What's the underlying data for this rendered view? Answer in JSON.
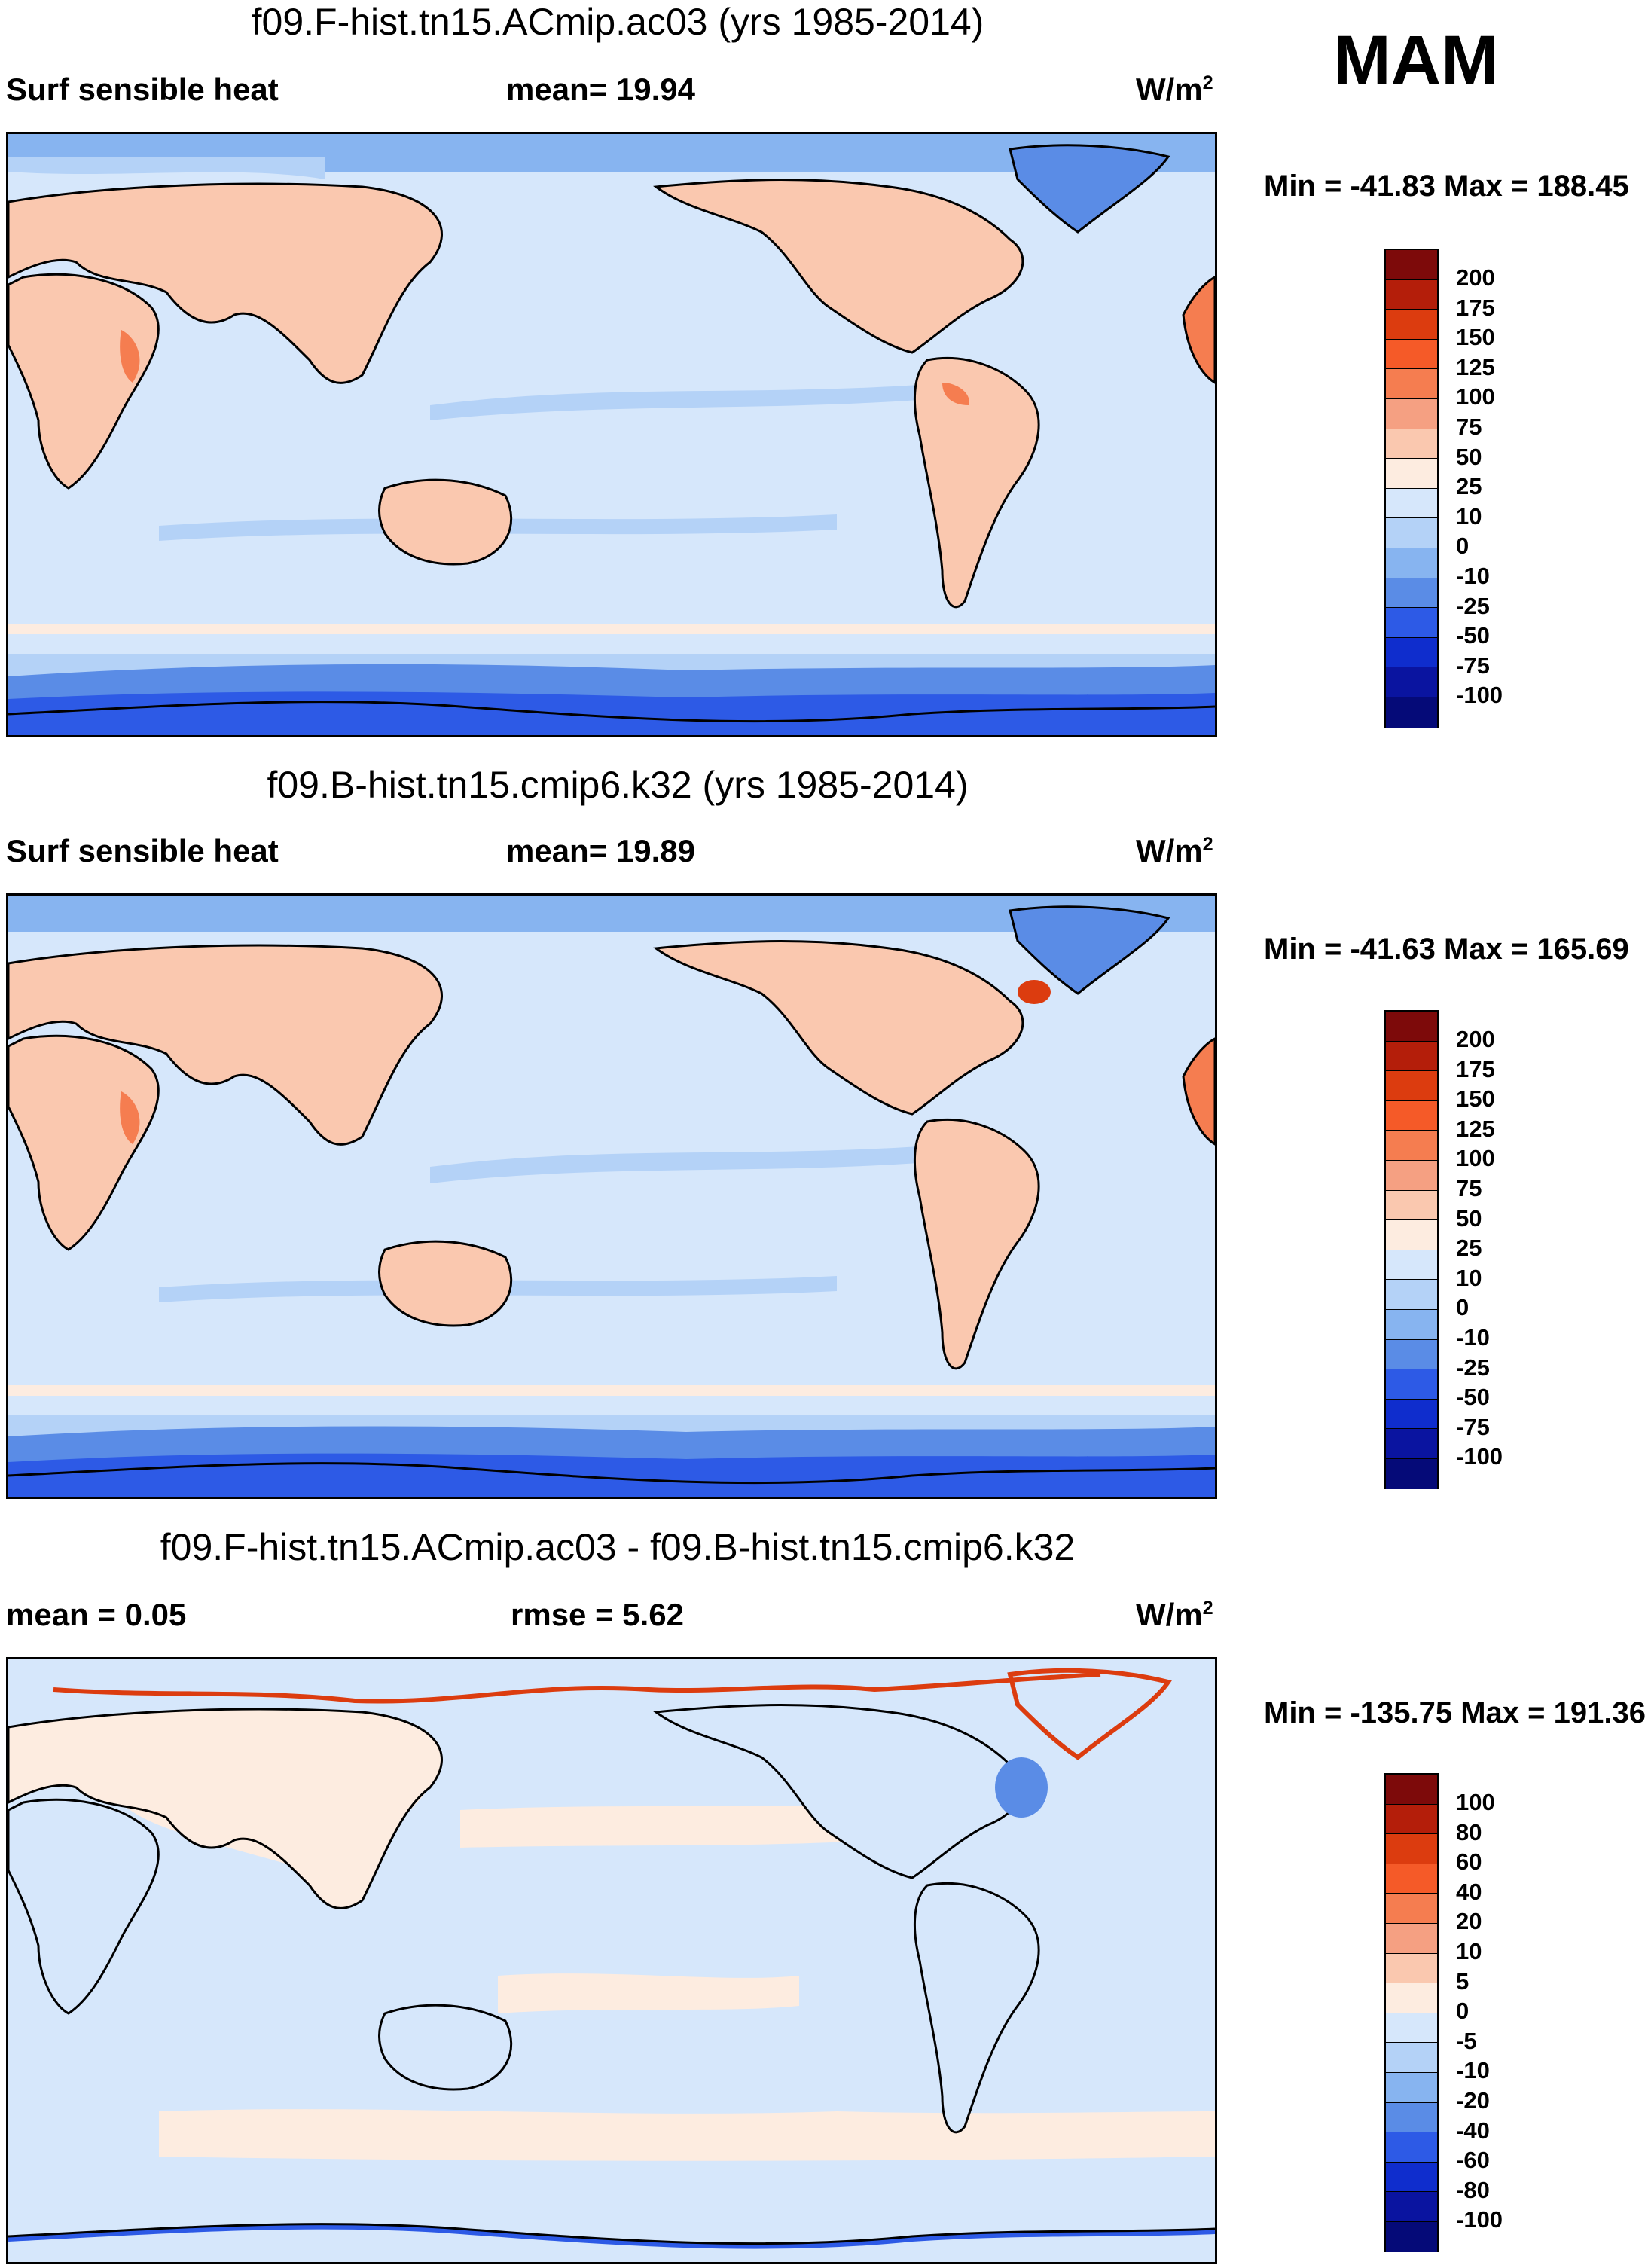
{
  "season": "MAM",
  "panels": [
    {
      "title": "f09.F-hist.tn15.ACmip.ac03 (yrs 1985-2014)",
      "left_label": "Surf sensible heat",
      "center_label": "mean=  19.94",
      "units": "W/m",
      "units_sup": "2",
      "minmax": "Min = -41.83 Max = 188.45"
    },
    {
      "title": "f09.B-hist.tn15.cmip6.k32 (yrs 1985-2014)",
      "left_label": "Surf sensible heat",
      "center_label": "mean=  19.89",
      "units": "W/m",
      "units_sup": "2",
      "minmax": "Min = -41.63 Max = 165.69"
    },
    {
      "title": "f09.F-hist.tn15.ACmip.ac03 - f09.B-hist.tn15.cmip6.k32",
      "left_label": "mean =   0.05",
      "center_label": "rmse =   5.62",
      "units": "W/m",
      "units_sup": "2",
      "minmax": "Min = -135.75 Max = 191.36"
    }
  ],
  "colorbar_model": {
    "labels": [
      "200",
      "175",
      "150",
      "125",
      "100",
      "75",
      "50",
      "25",
      "10",
      "0",
      "-10",
      "-25",
      "-50",
      "-75",
      "-100"
    ],
    "colors": [
      "#7d0a0a",
      "#b41e0a",
      "#dc3c0f",
      "#f55a28",
      "#f57d50",
      "#f5a082",
      "#fac8af",
      "#fdece0",
      "#d6e7fb",
      "#b4d2f7",
      "#87b4f0",
      "#5a8ce6",
      "#2d5ae6",
      "#0f2dcd",
      "#0a14a0",
      "#050a78"
    ]
  },
  "colorbar_diff": {
    "labels": [
      "100",
      "80",
      "60",
      "40",
      "20",
      "10",
      "5",
      "0",
      "-5",
      "-10",
      "-20",
      "-40",
      "-60",
      "-80",
      "-100"
    ],
    "colors": [
      "#7d0a0a",
      "#b41e0a",
      "#dc3c0f",
      "#f55a28",
      "#f57d50",
      "#f5a082",
      "#fac8af",
      "#fdece0",
      "#d6e7fb",
      "#b4d2f7",
      "#87b4f0",
      "#5a8ce6",
      "#2d5ae6",
      "#0f2dcd",
      "#0a14a0",
      "#050a78"
    ]
  }
}
